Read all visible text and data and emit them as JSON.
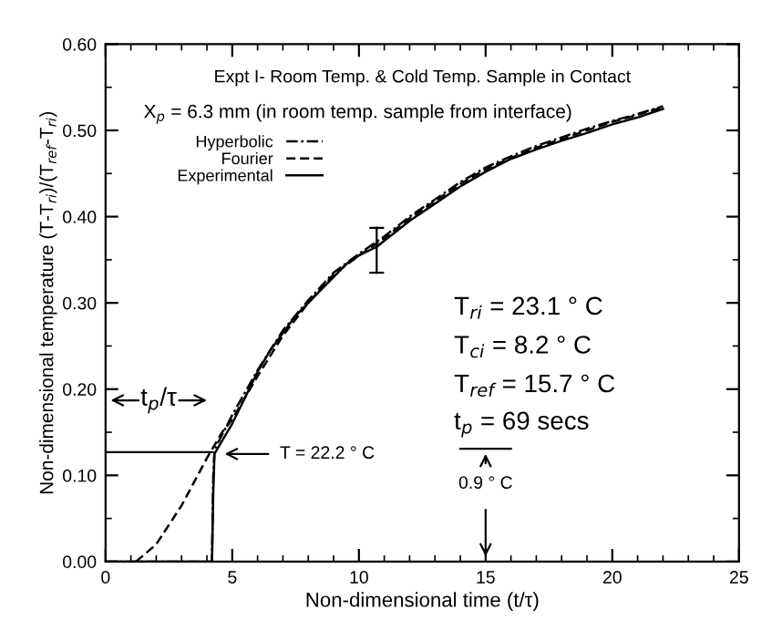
{
  "chart_data": {
    "type": "line",
    "xlabel": "Non-dimensional time (t/τ)",
    "ylabel": "Non-dimensional temperature (T-T$_{ri}$)/(T$_{ref}$-T$_{ri}$)",
    "xlim": [
      0,
      25
    ],
    "xticks": [
      0,
      5,
      10,
      15,
      20,
      25
    ],
    "ylim": [
      0,
      0.6
    ],
    "yticks": [
      {
        "value": 0,
        "label": "0.00"
      },
      {
        "value": 0.1,
        "label": "0.10"
      },
      {
        "value": 0.2,
        "label": "0.20"
      },
      {
        "value": 0.3,
        "label": "0.30"
      },
      {
        "value": 0.4,
        "label": "0.40"
      },
      {
        "value": 0.5,
        "label": "0.50"
      },
      {
        "value": 0.6,
        "label": "0.60"
      }
    ],
    "grid": false,
    "legend": "top left",
    "series": [
      {
        "name": "Hyperbolic",
        "color": "#000000",
        "line_style": "dashdot",
        "x": [
          0,
          4.2,
          4.25,
          4.3,
          5,
          6,
          7,
          8,
          9,
          10,
          11,
          12,
          13,
          14,
          15,
          16,
          17,
          18,
          19,
          20,
          21,
          22
        ],
        "values": [
          0,
          0,
          0.1,
          0.13,
          0.17,
          0.222,
          0.268,
          0.303,
          0.335,
          0.357,
          0.377,
          0.4,
          0.42,
          0.44,
          0.457,
          0.47,
          0.482,
          0.492,
          0.502,
          0.511,
          0.519,
          0.528
        ]
      },
      {
        "name": "Fourier",
        "color": "#000000",
        "line_style": "dashed",
        "x": [
          1.2,
          2,
          3,
          4,
          4.6,
          5,
          6,
          7,
          8,
          9,
          10,
          11,
          12,
          13,
          14,
          15,
          16,
          17,
          18,
          19,
          20,
          21,
          22
        ],
        "values": [
          0,
          0.02,
          0.065,
          0.12,
          0.15,
          0.165,
          0.215,
          0.262,
          0.3,
          0.333,
          0.355,
          0.375,
          0.398,
          0.418,
          0.438,
          0.455,
          0.468,
          0.48,
          0.49,
          0.5,
          0.51,
          0.518,
          0.527
        ]
      },
      {
        "name": "Experimental",
        "color": "#000000",
        "line_style": "solid",
        "x": [
          0,
          4.2,
          4.25,
          4.3,
          4.6,
          5,
          5.5,
          6,
          6.5,
          7,
          7.5,
          8,
          8.5,
          9,
          9.5,
          10,
          10.7,
          11,
          12,
          13,
          14,
          15,
          16,
          17,
          18,
          19,
          20,
          21,
          22
        ],
        "values": [
          0,
          0,
          0.08,
          0.125,
          0.14,
          0.16,
          0.19,
          0.22,
          0.245,
          0.265,
          0.285,
          0.3,
          0.315,
          0.33,
          0.345,
          0.355,
          0.365,
          0.372,
          0.395,
          0.415,
          0.435,
          0.452,
          0.467,
          0.478,
          0.488,
          0.497,
          0.507,
          0.515,
          0.525
        ],
        "errors": [
          null,
          null,
          null,
          null,
          null,
          null,
          null,
          null,
          null,
          null,
          null,
          null,
          null,
          null,
          null,
          null,
          [
            0.335,
            0.387
          ],
          null,
          null,
          null,
          null,
          null,
          null,
          null,
          null,
          null,
          null,
          null,
          null
        ]
      }
    ],
    "annotations": [
      "Expt I- Room Temp. & Cold Temp. Sample in Contact",
      "X$_{p}$ = 6.3 mm (in room temp. sample from interface)",
      "T$_{ri}$ = 23.1 ° C",
      "T$_{ci}$ = 8.2 ° C",
      "T$_{ref}$ = 15.7 ° C",
      "t$_{p}$ = 69 secs",
      {
        "text": "t$_{p}$/τ",
        "x": 4.2,
        "y": 0.127
      },
      "T = 22.2 ° C",
      "0.9 ° C"
    ]
  }
}
